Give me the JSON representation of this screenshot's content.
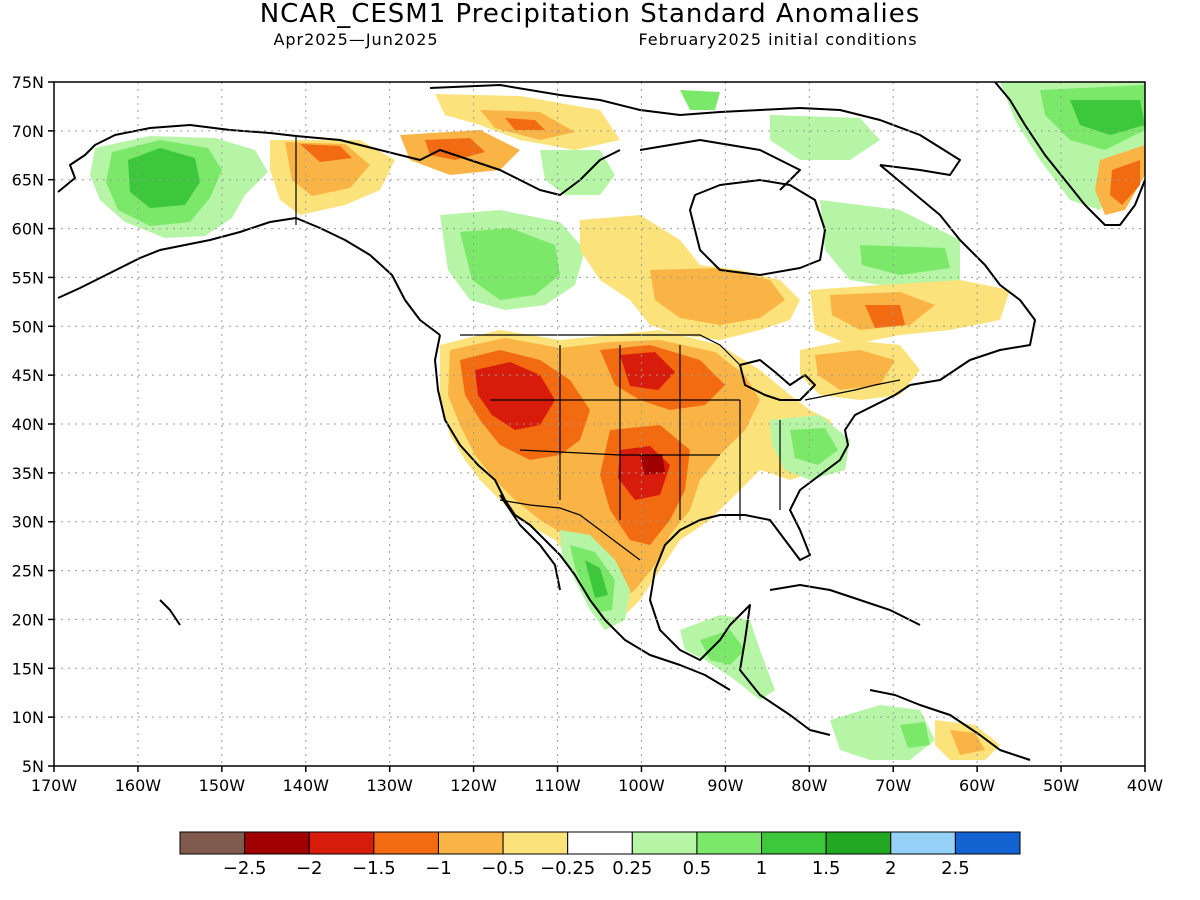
{
  "title": "NCAR_CESM1 Precipitation Standard Anomalies",
  "subtitle_left": "Apr2025—Jun2025",
  "subtitle_right": "February2025 initial conditions",
  "lat_labels": [
    "75N",
    "70N",
    "65N",
    "60N",
    "55N",
    "50N",
    "45N",
    "40N",
    "35N",
    "30N",
    "25N",
    "20N",
    "15N",
    "10N",
    "5N"
  ],
  "lon_labels": [
    "170W",
    "160W",
    "150W",
    "140W",
    "130W",
    "120W",
    "110W",
    "100W",
    "90W",
    "80W",
    "70W",
    "60W",
    "50W",
    "40W"
  ],
  "colorbar": {
    "colors": [
      "#7f5a4d",
      "#a00000",
      "#d81c0c",
      "#f26b10",
      "#f9b445",
      "#fbe27a",
      "#ffffff",
      "#b6f5a6",
      "#7be86a",
      "#3cc83a",
      "#22a822",
      "#96d2f8",
      "#1463d2"
    ],
    "labels": [
      "−2.5",
      "−2",
      "−1.5",
      "−1",
      "−0.5",
      "−0.25",
      "0.25",
      "0.5",
      "1",
      "1.5",
      "2",
      "2.5"
    ]
  }
}
